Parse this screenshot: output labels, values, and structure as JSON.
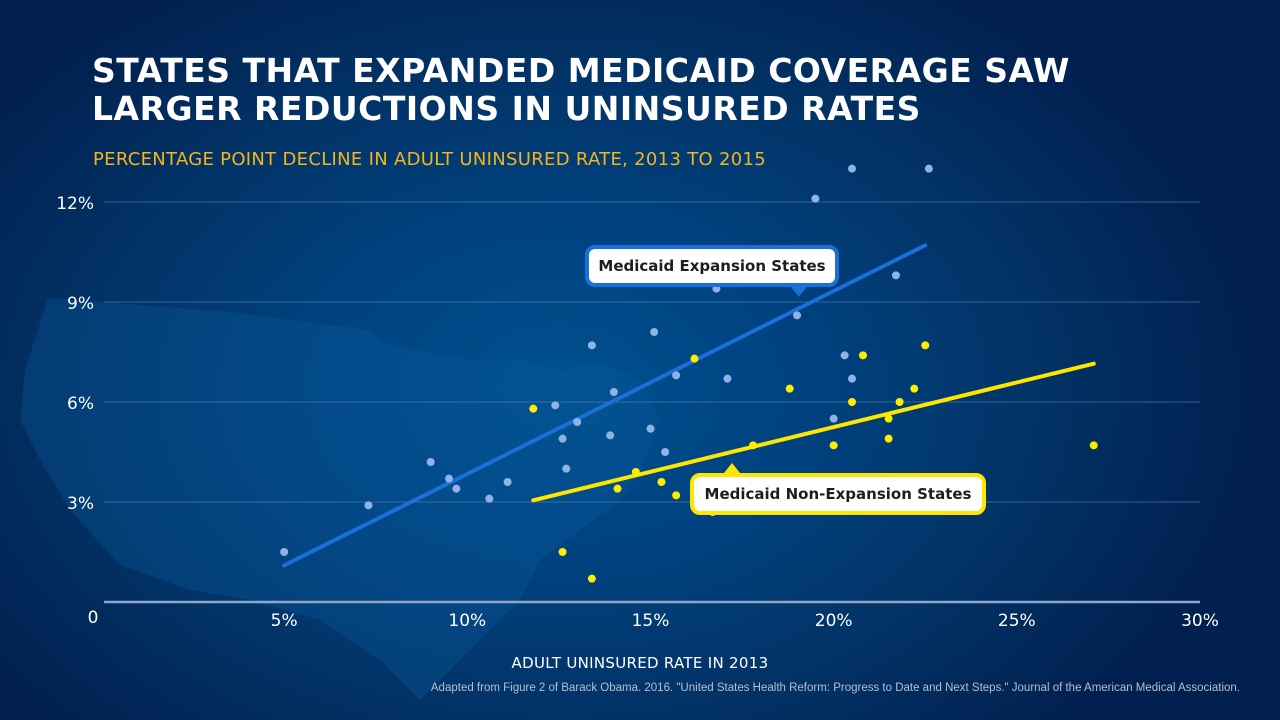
{
  "header": {
    "title_line1": "STATES THAT EXPANDED MEDICAID COVERAGE SAW",
    "title_line2": "LARGER REDUCTIONS IN UNINSURED RATES",
    "subtitle": "PERCENTAGE POINT DECLINE IN ADULT UNINSURED RATE, 2013 TO 2015"
  },
  "source": "Adapted from Figure 2 of Barack Obama. 2016.  \"United States Health Reform: Progress to Date and Next Steps.\"  Journal of the American Medical Association.",
  "colors": {
    "expansion_point": "#8fb3e6",
    "expansion_line": "#1a6fd8",
    "non_expansion_point": "#ffed00",
    "non_expansion_line": "#ffe600",
    "subtitle": "#f4b41a"
  },
  "chart_data": {
    "type": "scatter",
    "title": "STATES THAT EXPANDED MEDICAID COVERAGE SAW LARGER REDUCTIONS IN UNINSURED RATES",
    "subtitle": "PERCENTAGE POINT DECLINE IN ADULT UNINSURED RATE, 2013 TO 2015",
    "xlabel": "ADULT UNINSURED RATE IN 2013",
    "ylabel": "",
    "xlim": [
      0,
      30
    ],
    "ylim": [
      0,
      12
    ],
    "x_ticks": [
      "0",
      "5%",
      "10%",
      "15%",
      "20%",
      "25%",
      "30%"
    ],
    "x_tick_values": [
      0,
      5,
      10,
      15,
      20,
      25,
      30
    ],
    "y_ticks": [
      "0",
      "3%",
      "6%",
      "9%",
      "12%"
    ],
    "y_tick_values": [
      0,
      3,
      6,
      9,
      12
    ],
    "grid": "horizontal",
    "series": [
      {
        "name": "Medicaid Expansion States",
        "points": [
          [
            5.0,
            1.5
          ],
          [
            7.3,
            2.9
          ],
          [
            9.0,
            4.2
          ],
          [
            9.5,
            3.7
          ],
          [
            9.7,
            3.4
          ],
          [
            10.6,
            3.1
          ],
          [
            11.1,
            3.6
          ],
          [
            12.4,
            5.9
          ],
          [
            12.6,
            4.9
          ],
          [
            12.7,
            4.0
          ],
          [
            13.0,
            5.4
          ],
          [
            13.4,
            7.7
          ],
          [
            13.9,
            5.0
          ],
          [
            14.0,
            6.3
          ],
          [
            15.0,
            5.2
          ],
          [
            15.1,
            8.1
          ],
          [
            15.4,
            4.5
          ],
          [
            15.7,
            6.8
          ],
          [
            16.8,
            9.4
          ],
          [
            17.1,
            6.7
          ],
          [
            19.0,
            8.6
          ],
          [
            19.5,
            12.1
          ],
          [
            20.0,
            5.5
          ],
          [
            20.3,
            7.4
          ],
          [
            20.5,
            6.7
          ],
          [
            20.5,
            13.0
          ],
          [
            21.7,
            9.8
          ],
          [
            22.6,
            13.0
          ]
        ],
        "trendline": [
          [
            5.0,
            1.1
          ],
          [
            22.5,
            10.7
          ]
        ]
      },
      {
        "name": "Medicaid Non-Expansion States",
        "points": [
          [
            11.8,
            5.8
          ],
          [
            12.6,
            1.5
          ],
          [
            13.4,
            0.7
          ],
          [
            14.1,
            3.4
          ],
          [
            14.6,
            3.9
          ],
          [
            15.3,
            3.6
          ],
          [
            15.7,
            3.2
          ],
          [
            16.2,
            7.3
          ],
          [
            16.7,
            2.7
          ],
          [
            17.8,
            4.7
          ],
          [
            18.8,
            6.4
          ],
          [
            20.0,
            4.7
          ],
          [
            20.5,
            6.0
          ],
          [
            20.8,
            7.4
          ],
          [
            21.5,
            4.9
          ],
          [
            21.5,
            5.5
          ],
          [
            21.8,
            6.0
          ],
          [
            22.2,
            6.4
          ],
          [
            22.5,
            7.7
          ],
          [
            27.1,
            4.7
          ]
        ],
        "trendline": [
          [
            11.8,
            3.05
          ],
          [
            27.1,
            7.15
          ]
        ]
      }
    ],
    "annotations": [
      "Medicaid Expansion States",
      "Medicaid Non-Expansion States"
    ]
  }
}
